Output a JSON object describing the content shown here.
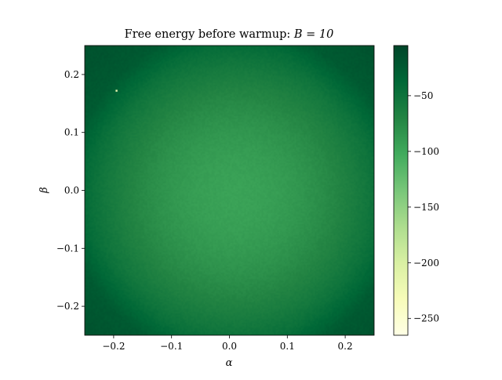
{
  "chart_data": {
    "type": "heatmap",
    "title": "Free energy before warmup: ",
    "title_math": "B = 10",
    "xlabel": "α",
    "ylabel": "β",
    "xlim": [
      -0.25,
      0.25
    ],
    "ylim": [
      -0.25,
      0.25
    ],
    "x_ticks": [
      -0.2,
      -0.1,
      0.0,
      0.1,
      0.2
    ],
    "x_tick_labels": [
      "−0.2",
      "−0.1",
      "0.0",
      "0.1",
      "0.2"
    ],
    "y_ticks": [
      -0.2,
      -0.1,
      0.0,
      0.1,
      0.2
    ],
    "y_tick_labels": [
      "−0.2",
      "−0.1",
      "0.0",
      "0.1",
      "0.2"
    ],
    "colormap": "YlGn_r",
    "colormap_stops": [
      "#ffffe5",
      "#f7fcb9",
      "#d9f0a3",
      "#addd8e",
      "#78c679",
      "#41ab5d",
      "#238443",
      "#006837",
      "#004529"
    ],
    "colorbar": {
      "range": [
        -265,
        -5
      ],
      "ticks": [
        -250,
        -200,
        -150,
        -100,
        -50
      ],
      "tick_labels": [
        "−250",
        "−200",
        "−150",
        "−100",
        "−50"
      ]
    },
    "field": {
      "description_free": true,
      "center": [
        0.0,
        0.0
      ],
      "center_value": -95,
      "edge_value": -30,
      "corner_value": -15
    },
    "outliers": [
      {
        "alpha": -0.195,
        "beta": 0.172,
        "value": -220
      }
    ],
    "grid": false,
    "legend": "none"
  }
}
